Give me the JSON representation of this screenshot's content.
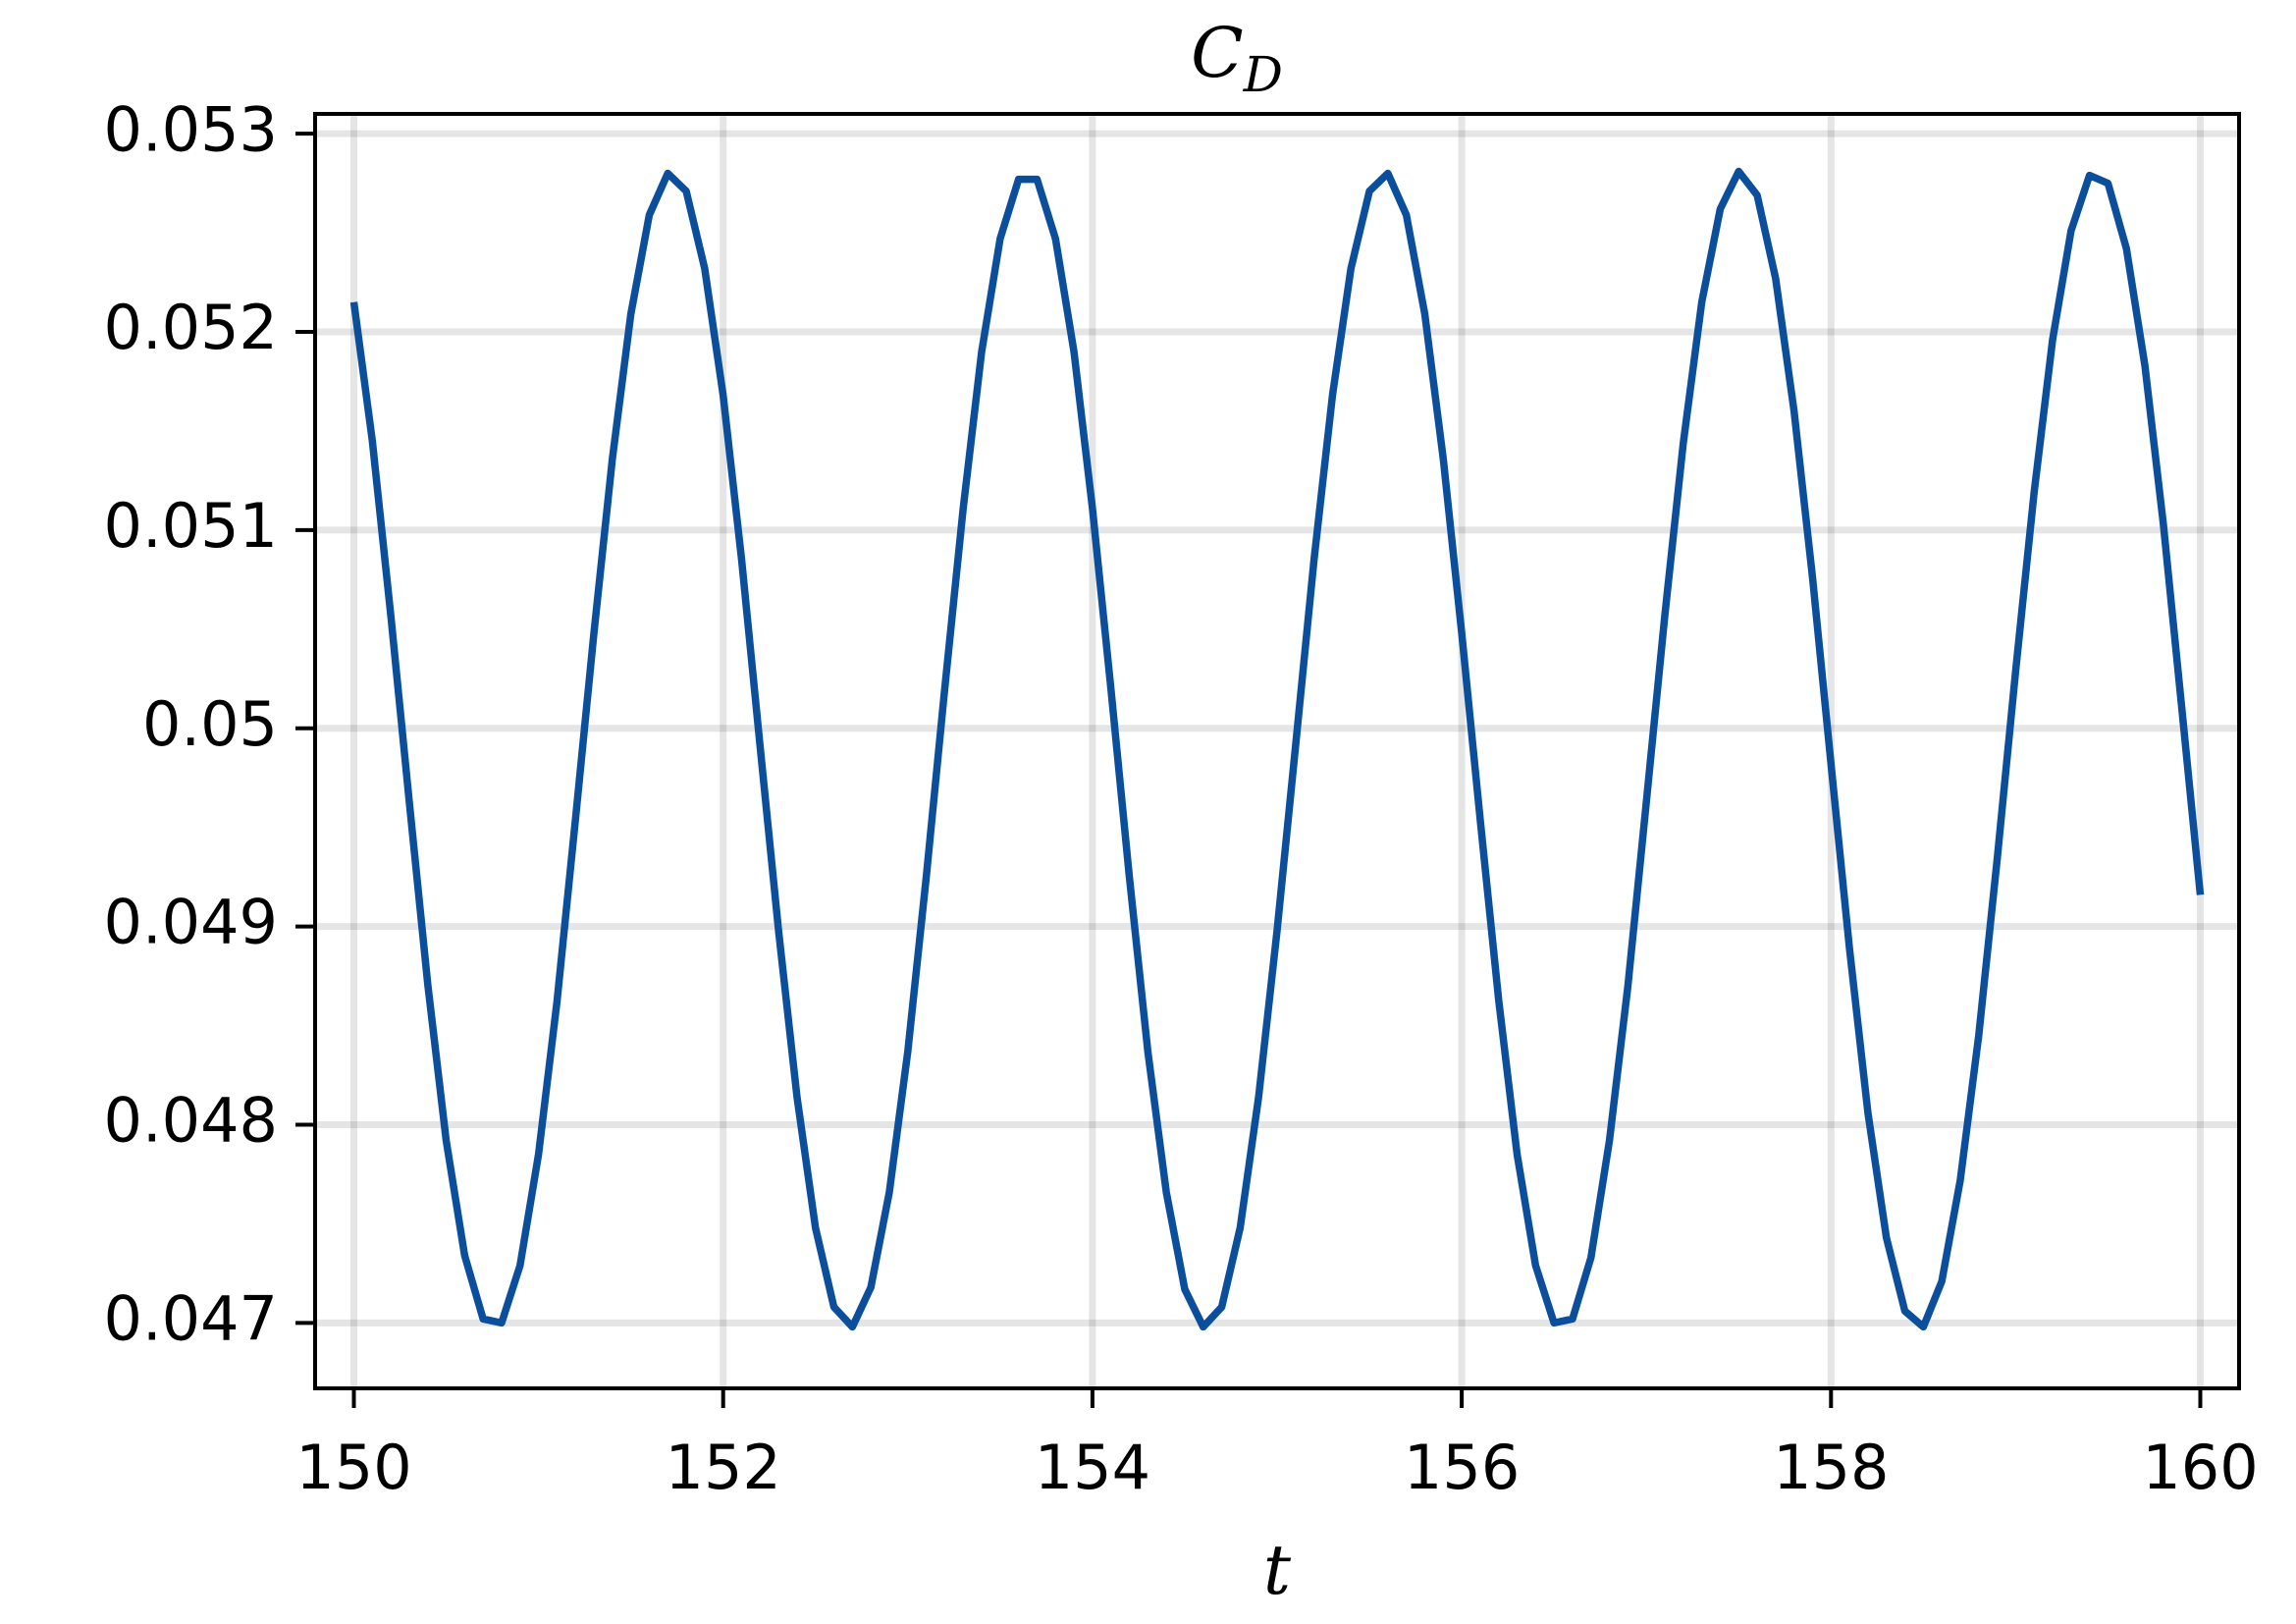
{
  "chart_data": {
    "type": "line",
    "title": "C",
    "title_subscript": "D",
    "x_label": "t",
    "x": [
      150,
      150.1,
      150.2,
      150.3,
      150.4,
      150.5,
      150.6,
      150.7,
      150.8,
      150.9,
      151,
      151.1,
      151.2,
      151.3,
      151.4,
      151.5,
      151.6,
      151.7,
      151.8,
      151.9,
      152,
      152.1,
      152.2,
      152.3,
      152.4,
      152.5,
      152.6,
      152.7,
      152.8,
      152.9,
      153,
      153.1,
      153.2,
      153.3,
      153.4,
      153.5,
      153.6,
      153.7,
      153.8,
      153.9,
      154,
      154.1,
      154.2,
      154.3,
      154.4,
      154.5,
      154.6,
      154.7,
      154.8,
      154.9,
      155,
      155.1,
      155.2,
      155.3,
      155.4,
      155.5,
      155.6,
      155.7,
      155.8,
      155.9,
      156,
      156.1,
      156.2,
      156.3,
      156.4,
      156.5,
      156.6,
      156.7,
      156.8,
      156.9,
      157,
      157.1,
      157.2,
      157.3,
      157.4,
      157.5,
      157.6,
      157.7,
      157.8,
      157.9,
      158,
      158.1,
      158.2,
      158.3,
      158.4,
      158.5,
      158.6,
      158.7,
      158.8,
      158.9,
      159,
      159.1,
      159.2,
      159.3,
      159.4,
      159.5,
      159.6,
      159.7,
      159.8,
      159.9,
      160
    ],
    "series": [
      {
        "color": "#0b4f9c",
        "values": [
          0.05215,
          0.05145,
          0.05057,
          0.04963,
          0.04871,
          0.04792,
          0.04734,
          0.04702,
          0.047,
          0.04729,
          0.04785,
          0.04862,
          0.04954,
          0.05048,
          0.05136,
          0.05209,
          0.05259,
          0.0528,
          0.05271,
          0.05232,
          0.05168,
          0.05085,
          0.04991,
          0.04898,
          0.04814,
          0.04748,
          0.04708,
          0.04698,
          0.04718,
          0.04766,
          0.04837,
          0.04925,
          0.0502,
          0.05111,
          0.0519,
          0.05247,
          0.05277,
          0.05277,
          0.05247,
          0.0519,
          0.05111,
          0.0502,
          0.04925,
          0.04837,
          0.04766,
          0.04717,
          0.04698,
          0.04708,
          0.04748,
          0.04814,
          0.04898,
          0.04991,
          0.05085,
          0.05168,
          0.05232,
          0.05271,
          0.0528,
          0.05259,
          0.05209,
          0.05136,
          0.05048,
          0.04954,
          0.04863,
          0.04785,
          0.04729,
          0.047,
          0.04702,
          0.04733,
          0.04792,
          0.0487,
          0.04963,
          0.05057,
          0.05144,
          0.05215,
          0.05262,
          0.05281,
          0.05269,
          0.05227,
          0.0516,
          0.05076,
          0.04982,
          0.04889,
          0.04806,
          0.04743,
          0.04706,
          0.04698,
          0.04721,
          0.04772,
          0.04845,
          0.04934,
          0.05029,
          0.05119,
          0.05196,
          0.05251,
          0.05279,
          0.05275,
          0.05242,
          0.05183,
          0.05103,
          0.0501,
          0.04916
        ]
      }
    ],
    "xlim": [
      149.79,
      160.21
    ],
    "ylim": [
      0.04667,
      0.0531
    ],
    "xticks": [
      150,
      152,
      154,
      156,
      158,
      160
    ],
    "yticks": [
      0.047,
      0.048,
      0.049,
      0.05,
      0.051,
      0.052,
      0.053
    ],
    "grid": true
  }
}
